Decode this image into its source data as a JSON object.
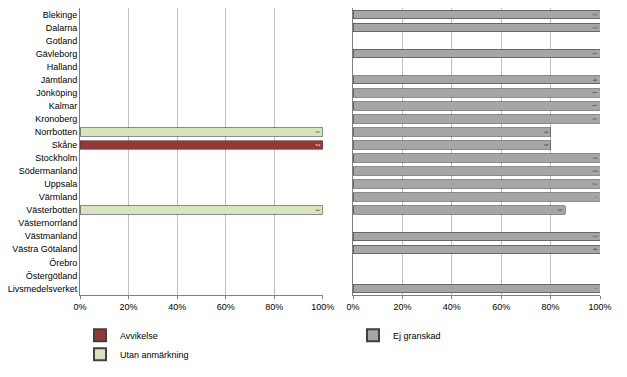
{
  "chart_data": [
    {
      "type": "bar",
      "orientation": "horizontal",
      "stacked": true,
      "grid": true,
      "legend": "bottom left",
      "categories": [
        "Blekinge",
        "Dalarna",
        "Gotland",
        "Gävleborg",
        "Halland",
        "Jämtland",
        "Jönköping",
        "Kalmar",
        "Kronoberg",
        "Norrbotten",
        "Skåne",
        "Stockholm",
        "Södermanland",
        "Uppsala",
        "Värmland",
        "Västerbotten",
        "Västernorrland",
        "Västmanland",
        "Västra Götaland",
        "Örebro",
        "Östergötland",
        "Livsmedelsverket"
      ],
      "series": [
        {
          "name": "Avvikelse",
          "color": "#953735",
          "values": [
            null,
            null,
            null,
            null,
            null,
            null,
            null,
            null,
            null,
            null,
            100,
            null,
            null,
            null,
            null,
            null,
            null,
            null,
            null,
            null,
            null,
            null
          ],
          "counts": [
            null,
            null,
            null,
            null,
            null,
            null,
            null,
            null,
            null,
            null,
            2,
            null,
            null,
            null,
            null,
            null,
            null,
            null,
            null,
            null,
            null,
            null
          ]
        },
        {
          "name": "Utan anmärkning",
          "color": "#d7e4bd",
          "values": [
            null,
            null,
            null,
            null,
            null,
            null,
            null,
            null,
            null,
            100,
            null,
            null,
            null,
            null,
            null,
            100,
            null,
            null,
            null,
            null,
            null,
            null
          ],
          "counts": [
            null,
            null,
            null,
            null,
            null,
            null,
            null,
            null,
            null,
            1,
            null,
            null,
            null,
            null,
            null,
            1,
            null,
            null,
            null,
            null,
            null,
            null
          ]
        }
      ],
      "xlim": [
        0,
        100
      ],
      "xticks": [
        {
          "value": 0,
          "label": "0%"
        },
        {
          "value": 20,
          "label": "20%"
        },
        {
          "value": 40,
          "label": "40%"
        },
        {
          "value": 60,
          "label": "60%"
        },
        {
          "value": 80,
          "label": "80%"
        },
        {
          "value": 100,
          "label": "100%"
        }
      ]
    },
    {
      "type": "bar",
      "orientation": "horizontal",
      "stacked": true,
      "grid": true,
      "legend": "bottom left",
      "tick_labels": "x",
      "categories": [
        "Blekinge",
        "Dalarna",
        "Gotland",
        "Gävleborg",
        "Halland",
        "Jämtland",
        "Jönköping",
        "Kalmar",
        "Kronoberg",
        "Norrbotten",
        "Skåne",
        "Stockholm",
        "Södermanland",
        "Uppsala",
        "Värmland",
        "Västerbotten",
        "Västernorrland",
        "Västmanland",
        "Västra Götaland",
        "Örebro",
        "Östergötland",
        "Livsmedelsverket"
      ],
      "series": [
        {
          "name": "Ej granskad",
          "color": "#a6a6a6",
          "values": [
            100,
            100,
            null,
            100,
            null,
            100,
            100,
            100,
            100,
            80,
            80,
            100,
            100,
            100,
            100,
            86,
            null,
            100,
            100,
            null,
            null,
            100
          ],
          "counts": [
            2,
            3,
            null,
            1,
            null,
            4,
            1,
            1,
            1,
            4,
            8,
            3,
            3,
            2,
            11,
            6,
            null,
            3,
            4,
            null,
            null,
            28
          ]
        }
      ],
      "xlim": [
        0,
        100
      ],
      "xticks": [
        {
          "value": 0,
          "label": "0%"
        },
        {
          "value": 20,
          "label": "20%"
        },
        {
          "value": 40,
          "label": "40%"
        },
        {
          "value": 60,
          "label": "60%"
        },
        {
          "value": 80,
          "label": "80%"
        },
        {
          "value": 100,
          "label": "100%"
        }
      ]
    }
  ]
}
